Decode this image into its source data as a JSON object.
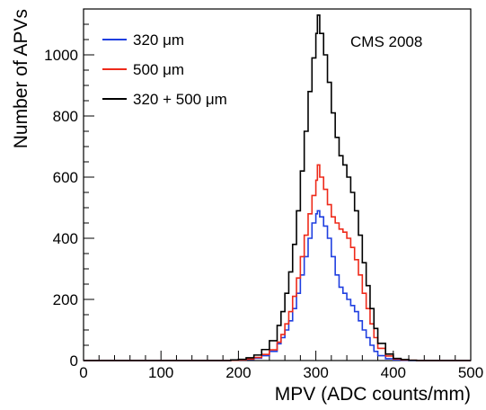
{
  "chart_data": {
    "type": "line",
    "xlabel": "MPV (ADC counts/mm)",
    "ylabel": "Number of APVs",
    "annotation": "CMS 2008",
    "xlim": [
      0,
      500
    ],
    "ylim": [
      0,
      1150
    ],
    "x_ticks": [
      0,
      100,
      200,
      300,
      400,
      500
    ],
    "y_ticks": [
      0,
      200,
      400,
      600,
      800,
      1000
    ],
    "grid": false,
    "legend_position": "top-left",
    "x": [
      180,
      190,
      200,
      210,
      220,
      230,
      240,
      250,
      255,
      260,
      265,
      270,
      275,
      280,
      285,
      290,
      295,
      300,
      302,
      305,
      310,
      315,
      320,
      325,
      330,
      335,
      340,
      345,
      350,
      355,
      360,
      365,
      370,
      375,
      380,
      390,
      400,
      410,
      420,
      430
    ],
    "series": [
      {
        "name": "320 μm",
        "color": "#1f3fe0",
        "values": [
          0,
          1,
          2,
          4,
          8,
          16,
          30,
          55,
          75,
          100,
          130,
          170,
          220,
          280,
          340,
          400,
          450,
          480,
          490,
          470,
          440,
          400,
          340,
          280,
          240,
          220,
          200,
          180,
          160,
          130,
          100,
          75,
          50,
          30,
          16,
          6,
          2,
          1,
          0,
          0
        ]
      },
      {
        "name": "500 μm",
        "color": "#ee2a1a",
        "values": [
          0,
          1,
          2,
          5,
          10,
          20,
          35,
          60,
          85,
          120,
          160,
          210,
          270,
          340,
          410,
          480,
          540,
          590,
          640,
          600,
          560,
          510,
          470,
          450,
          430,
          420,
          400,
          370,
          330,
          280,
          220,
          170,
          120,
          75,
          40,
          15,
          5,
          2,
          1,
          0
        ]
      },
      {
        "name": "320 + 500 μm",
        "color": "#000000",
        "values": [
          0,
          2,
          4,
          9,
          18,
          36,
          65,
          115,
          160,
          220,
          290,
          380,
          490,
          620,
          750,
          880,
          990,
          1070,
          1130,
          1070,
          1000,
          910,
          810,
          730,
          670,
          640,
          600,
          550,
          490,
          410,
          320,
          245,
          170,
          105,
          56,
          21,
          7,
          3,
          1,
          0
        ]
      }
    ]
  }
}
